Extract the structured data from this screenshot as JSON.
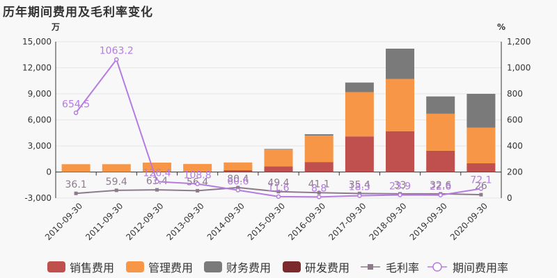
{
  "title": "历年期间费用及毛利率变化",
  "units": {
    "left": "万",
    "right": "%"
  },
  "chart_data": {
    "type": "bar",
    "stacked": true,
    "categories": [
      "2010-09-30",
      "2011-09-30",
      "2012-09-30",
      "2013-09-30",
      "2014-09-30",
      "2015-09-30",
      "2016-09-30",
      "2017-09-30",
      "2018-09-30",
      "2019-09-30",
      "2020-09-30"
    ],
    "ylim_left": [
      -3000,
      15000
    ],
    "yticks_left": [
      -3000,
      0,
      3000,
      6000,
      9000,
      12000,
      15000
    ],
    "ytick_labels_left": [
      "-3,000",
      "0",
      "3,000",
      "6,000",
      "9,000",
      "12,000",
      "15,000"
    ],
    "ylim_right": [
      0,
      1200
    ],
    "yticks_right": [
      0,
      200,
      400,
      600,
      800,
      1000,
      1200
    ],
    "ytick_labels_right": [
      "0",
      "200",
      "400",
      "600",
      "800",
      "1,000",
      "1,200"
    ],
    "series": [
      {
        "name": "销售费用",
        "color": "#c0504d",
        "values": [
          0,
          0,
          30,
          30,
          200,
          650,
          1150,
          4100,
          4700,
          2450,
          1000
        ]
      },
      {
        "name": "管理费用",
        "color": "#f79646",
        "values": [
          900,
          900,
          1050,
          900,
          900,
          1950,
          3050,
          5100,
          6000,
          4250,
          4100
        ]
      },
      {
        "name": "财务费用",
        "color": "#7a7a7a",
        "values": [
          0,
          0,
          0,
          0,
          0,
          50,
          150,
          1100,
          3500,
          2000,
          3900
        ]
      },
      {
        "name": "研发费用",
        "color": "#7b2b2b",
        "values": [
          0,
          0,
          0,
          0,
          0,
          0,
          0,
          0,
          0,
          0,
          0
        ]
      }
    ],
    "lines": [
      {
        "name": "毛利率",
        "color": "#8c7b8b",
        "marker": "square",
        "axis": "right",
        "values": [
          36.1,
          59.4,
          63.4,
          56.4,
          80.4,
          49.4,
          41.1,
          35.4,
          33,
          32.6,
          26
        ],
        "labels": [
          "36.1",
          "59.4",
          "63.4",
          "56.4",
          "80.4",
          "49.4",
          "41.1",
          "35.4",
          "33",
          "32.6",
          "26"
        ]
      },
      {
        "name": "期间费用率",
        "color": "#b57be0",
        "marker": "circle",
        "axis": "right",
        "values": [
          654.5,
          1063.2,
          126.4,
          108.8,
          60.6,
          11.6,
          8.8,
          18.3,
          23.9,
          22.6,
          72.1
        ],
        "labels": [
          "654.5",
          "1063.2",
          "126.4",
          "108.8",
          "60.6",
          "11.6",
          "8.8",
          "18.3",
          "23.9",
          "22.6",
          "72.1"
        ]
      }
    ]
  }
}
